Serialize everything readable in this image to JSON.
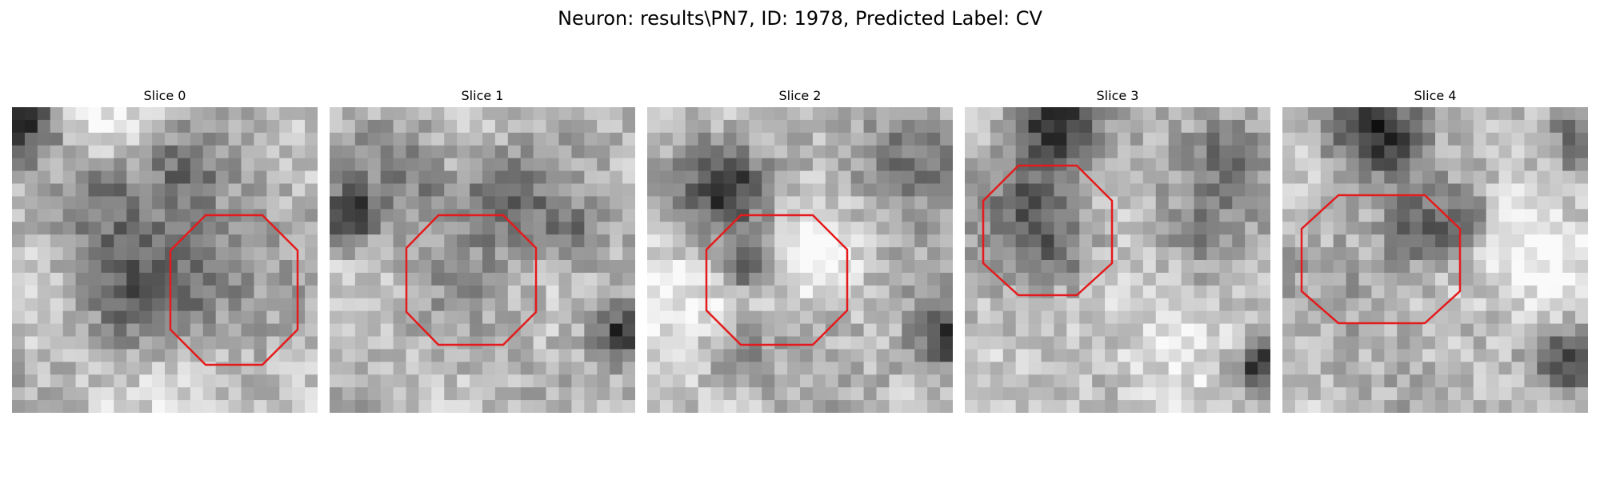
{
  "figure": {
    "title": "Neuron: results\\PN7, ID: 1978, Predicted Label: CV"
  },
  "outline_color": "#e41a1c",
  "grid_size": 24,
  "panels": [
    {
      "title": "Slice 0",
      "seed": 11,
      "blobs": [
        [
          0.04,
          0.04,
          0.08,
          -0.55
        ],
        [
          0.3,
          0.25,
          0.1,
          -0.25
        ],
        [
          0.55,
          0.2,
          0.1,
          -0.25
        ],
        [
          0.4,
          0.6,
          0.18,
          -0.35
        ],
        [
          0.7,
          0.55,
          0.14,
          -0.2
        ],
        [
          0.3,
          0.08,
          0.12,
          0.2
        ],
        [
          0.5,
          0.9,
          0.18,
          0.15
        ],
        [
          0.15,
          0.65,
          0.12,
          0.15
        ]
      ]
    },
    {
      "title": "Slice 1",
      "seed": 23,
      "blobs": [
        [
          0.06,
          0.35,
          0.06,
          -0.55
        ],
        [
          0.25,
          0.22,
          0.1,
          -0.25
        ],
        [
          0.58,
          0.3,
          0.1,
          -0.3
        ],
        [
          0.95,
          0.75,
          0.06,
          -0.55
        ],
        [
          0.45,
          0.5,
          0.14,
          -0.1
        ],
        [
          0.8,
          0.4,
          0.08,
          -0.25
        ]
      ]
    },
    {
      "title": "Slice 2",
      "seed": 37,
      "blobs": [
        [
          0.25,
          0.25,
          0.1,
          -0.55
        ],
        [
          0.33,
          0.5,
          0.06,
          -0.45
        ],
        [
          0.55,
          0.45,
          0.09,
          0.35
        ],
        [
          0.85,
          0.15,
          0.15,
          -0.3
        ],
        [
          0.99,
          0.75,
          0.08,
          -0.5
        ],
        [
          0.15,
          0.65,
          0.14,
          0.25
        ],
        [
          0.3,
          0.8,
          0.08,
          -0.3
        ],
        [
          0.65,
          0.1,
          0.15,
          0.1
        ]
      ]
    },
    {
      "title": "Slice 3",
      "seed": 51,
      "blobs": [
        [
          0.3,
          0.05,
          0.1,
          -0.55
        ],
        [
          0.2,
          0.3,
          0.1,
          -0.25
        ],
        [
          0.3,
          0.45,
          0.1,
          -0.3
        ],
        [
          0.85,
          0.15,
          0.1,
          -0.25
        ],
        [
          0.97,
          0.85,
          0.06,
          -0.55
        ],
        [
          0.8,
          0.4,
          0.12,
          -0.15
        ],
        [
          0.6,
          0.75,
          0.2,
          0.15
        ]
      ]
    },
    {
      "title": "Slice 4",
      "seed": 67,
      "blobs": [
        [
          0.3,
          0.08,
          0.1,
          -0.55
        ],
        [
          0.45,
          0.4,
          0.08,
          -0.35
        ],
        [
          0.6,
          0.35,
          0.08,
          -0.25
        ],
        [
          0.95,
          0.1,
          0.08,
          -0.25
        ],
        [
          0.92,
          0.82,
          0.08,
          -0.45
        ],
        [
          0.85,
          0.55,
          0.15,
          0.25
        ],
        [
          0.3,
          0.6,
          0.12,
          -0.1
        ],
        [
          0.75,
          0.4,
          0.12,
          0.1
        ]
      ]
    }
  ]
}
